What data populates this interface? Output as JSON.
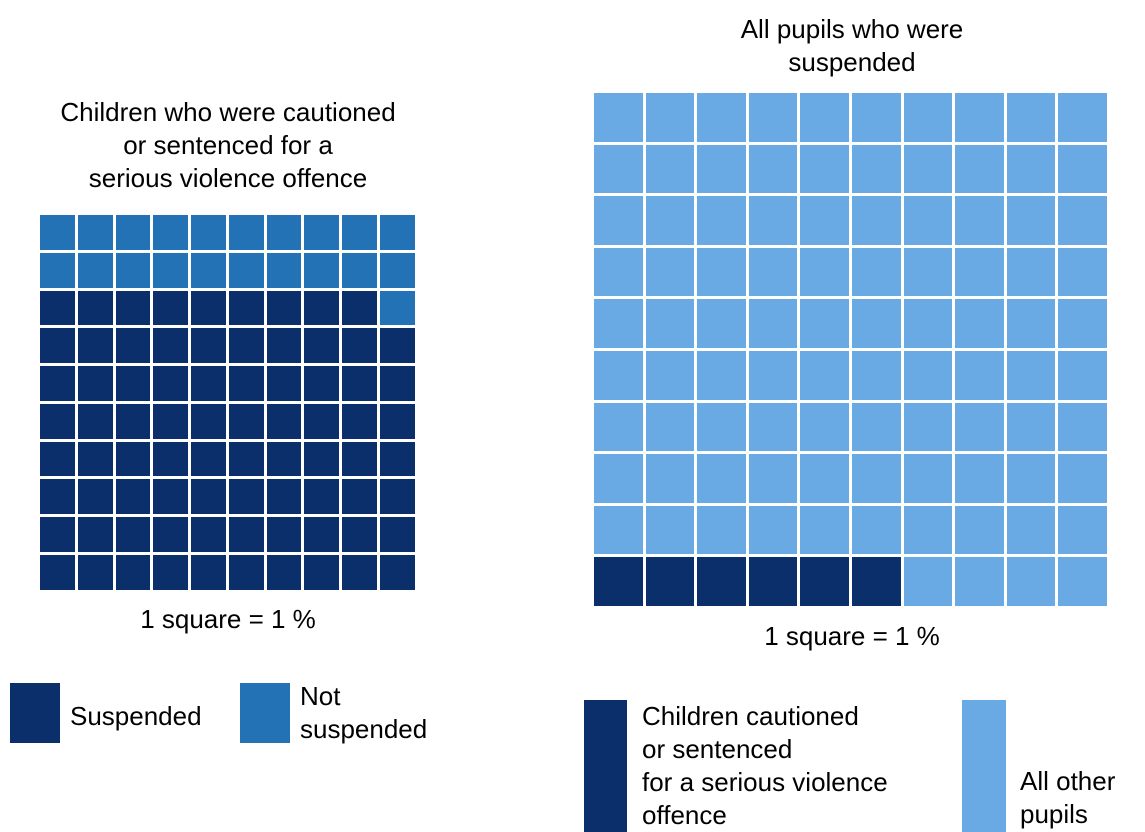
{
  "chart_data": [
    {
      "type": "waffle",
      "title": "Children who were cautioned\nor sentenced for a\nserious violence offence",
      "note": "1 square = 1 %",
      "series": [
        {
          "name": "Suspended",
          "color": "#0b2f6b",
          "values": [
            79
          ]
        },
        {
          "name": "Not\nsuspended",
          "color": "#2372b5",
          "values": [
            21
          ]
        }
      ]
    },
    {
      "type": "waffle",
      "title": "All pupils who were\nsuspended",
      "note": "1 square = 1 %",
      "series": [
        {
          "name": "Children cautioned\nor sentenced\nfor a serious violence\noffence",
          "color": "#0b2f6b",
          "values": [
            6
          ]
        },
        {
          "name": "All other\npupils",
          "color": "#6aaae4",
          "values": [
            94
          ]
        }
      ]
    }
  ]
}
